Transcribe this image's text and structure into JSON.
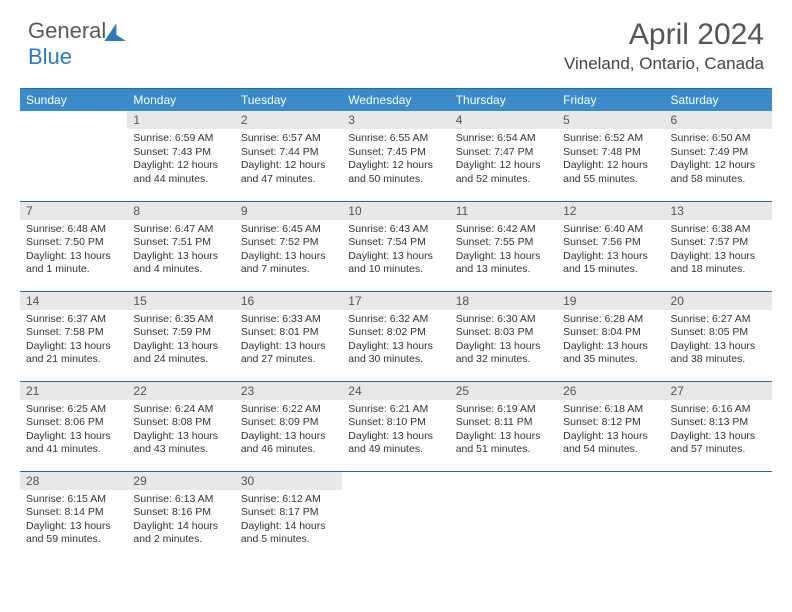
{
  "brand": {
    "part1": "General",
    "part2": "Blue"
  },
  "title": "April 2024",
  "location": "Vineland, Ontario, Canada",
  "colors": {
    "header_bg": "#3a8bc9",
    "header_text": "#ffffff",
    "daynum_bg": "#e8e8e8",
    "border": "#2a6a9a",
    "brand_gray": "#5a5a5a",
    "brand_blue": "#2a7bbf"
  },
  "day_headers": [
    "Sunday",
    "Monday",
    "Tuesday",
    "Wednesday",
    "Thursday",
    "Friday",
    "Saturday"
  ],
  "weeks": [
    [
      {
        "n": "",
        "sr": "",
        "ss": "",
        "dl": ""
      },
      {
        "n": "1",
        "sr": "Sunrise: 6:59 AM",
        "ss": "Sunset: 7:43 PM",
        "dl": "Daylight: 12 hours and 44 minutes."
      },
      {
        "n": "2",
        "sr": "Sunrise: 6:57 AM",
        "ss": "Sunset: 7:44 PM",
        "dl": "Daylight: 12 hours and 47 minutes."
      },
      {
        "n": "3",
        "sr": "Sunrise: 6:55 AM",
        "ss": "Sunset: 7:45 PM",
        "dl": "Daylight: 12 hours and 50 minutes."
      },
      {
        "n": "4",
        "sr": "Sunrise: 6:54 AM",
        "ss": "Sunset: 7:47 PM",
        "dl": "Daylight: 12 hours and 52 minutes."
      },
      {
        "n": "5",
        "sr": "Sunrise: 6:52 AM",
        "ss": "Sunset: 7:48 PM",
        "dl": "Daylight: 12 hours and 55 minutes."
      },
      {
        "n": "6",
        "sr": "Sunrise: 6:50 AM",
        "ss": "Sunset: 7:49 PM",
        "dl": "Daylight: 12 hours and 58 minutes."
      }
    ],
    [
      {
        "n": "7",
        "sr": "Sunrise: 6:48 AM",
        "ss": "Sunset: 7:50 PM",
        "dl": "Daylight: 13 hours and 1 minute."
      },
      {
        "n": "8",
        "sr": "Sunrise: 6:47 AM",
        "ss": "Sunset: 7:51 PM",
        "dl": "Daylight: 13 hours and 4 minutes."
      },
      {
        "n": "9",
        "sr": "Sunrise: 6:45 AM",
        "ss": "Sunset: 7:52 PM",
        "dl": "Daylight: 13 hours and 7 minutes."
      },
      {
        "n": "10",
        "sr": "Sunrise: 6:43 AM",
        "ss": "Sunset: 7:54 PM",
        "dl": "Daylight: 13 hours and 10 minutes."
      },
      {
        "n": "11",
        "sr": "Sunrise: 6:42 AM",
        "ss": "Sunset: 7:55 PM",
        "dl": "Daylight: 13 hours and 13 minutes."
      },
      {
        "n": "12",
        "sr": "Sunrise: 6:40 AM",
        "ss": "Sunset: 7:56 PM",
        "dl": "Daylight: 13 hours and 15 minutes."
      },
      {
        "n": "13",
        "sr": "Sunrise: 6:38 AM",
        "ss": "Sunset: 7:57 PM",
        "dl": "Daylight: 13 hours and 18 minutes."
      }
    ],
    [
      {
        "n": "14",
        "sr": "Sunrise: 6:37 AM",
        "ss": "Sunset: 7:58 PM",
        "dl": "Daylight: 13 hours and 21 minutes."
      },
      {
        "n": "15",
        "sr": "Sunrise: 6:35 AM",
        "ss": "Sunset: 7:59 PM",
        "dl": "Daylight: 13 hours and 24 minutes."
      },
      {
        "n": "16",
        "sr": "Sunrise: 6:33 AM",
        "ss": "Sunset: 8:01 PM",
        "dl": "Daylight: 13 hours and 27 minutes."
      },
      {
        "n": "17",
        "sr": "Sunrise: 6:32 AM",
        "ss": "Sunset: 8:02 PM",
        "dl": "Daylight: 13 hours and 30 minutes."
      },
      {
        "n": "18",
        "sr": "Sunrise: 6:30 AM",
        "ss": "Sunset: 8:03 PM",
        "dl": "Daylight: 13 hours and 32 minutes."
      },
      {
        "n": "19",
        "sr": "Sunrise: 6:28 AM",
        "ss": "Sunset: 8:04 PM",
        "dl": "Daylight: 13 hours and 35 minutes."
      },
      {
        "n": "20",
        "sr": "Sunrise: 6:27 AM",
        "ss": "Sunset: 8:05 PM",
        "dl": "Daylight: 13 hours and 38 minutes."
      }
    ],
    [
      {
        "n": "21",
        "sr": "Sunrise: 6:25 AM",
        "ss": "Sunset: 8:06 PM",
        "dl": "Daylight: 13 hours and 41 minutes."
      },
      {
        "n": "22",
        "sr": "Sunrise: 6:24 AM",
        "ss": "Sunset: 8:08 PM",
        "dl": "Daylight: 13 hours and 43 minutes."
      },
      {
        "n": "23",
        "sr": "Sunrise: 6:22 AM",
        "ss": "Sunset: 8:09 PM",
        "dl": "Daylight: 13 hours and 46 minutes."
      },
      {
        "n": "24",
        "sr": "Sunrise: 6:21 AM",
        "ss": "Sunset: 8:10 PM",
        "dl": "Daylight: 13 hours and 49 minutes."
      },
      {
        "n": "25",
        "sr": "Sunrise: 6:19 AM",
        "ss": "Sunset: 8:11 PM",
        "dl": "Daylight: 13 hours and 51 minutes."
      },
      {
        "n": "26",
        "sr": "Sunrise: 6:18 AM",
        "ss": "Sunset: 8:12 PM",
        "dl": "Daylight: 13 hours and 54 minutes."
      },
      {
        "n": "27",
        "sr": "Sunrise: 6:16 AM",
        "ss": "Sunset: 8:13 PM",
        "dl": "Daylight: 13 hours and 57 minutes."
      }
    ],
    [
      {
        "n": "28",
        "sr": "Sunrise: 6:15 AM",
        "ss": "Sunset: 8:14 PM",
        "dl": "Daylight: 13 hours and 59 minutes."
      },
      {
        "n": "29",
        "sr": "Sunrise: 6:13 AM",
        "ss": "Sunset: 8:16 PM",
        "dl": "Daylight: 14 hours and 2 minutes."
      },
      {
        "n": "30",
        "sr": "Sunrise: 6:12 AM",
        "ss": "Sunset: 8:17 PM",
        "dl": "Daylight: 14 hours and 5 minutes."
      },
      {
        "n": "",
        "sr": "",
        "ss": "",
        "dl": ""
      },
      {
        "n": "",
        "sr": "",
        "ss": "",
        "dl": ""
      },
      {
        "n": "",
        "sr": "",
        "ss": "",
        "dl": ""
      },
      {
        "n": "",
        "sr": "",
        "ss": "",
        "dl": ""
      }
    ]
  ]
}
